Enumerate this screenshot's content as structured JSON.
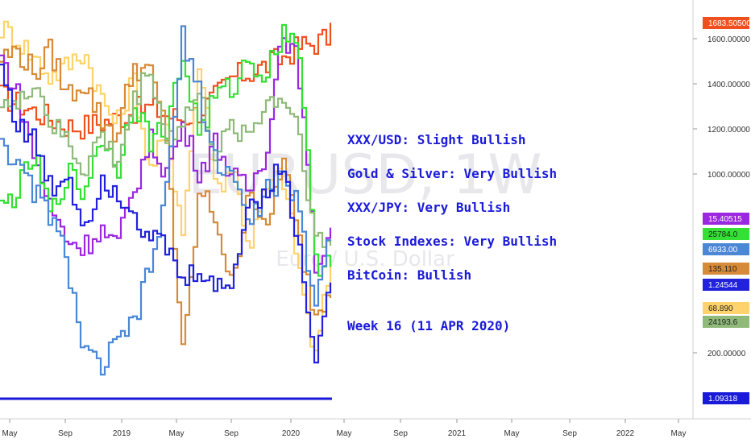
{
  "watermark": {
    "symbol": "EURUSD, 1W",
    "description": "Euro / U.S. Dollar"
  },
  "annotations": [
    "XXX/USD: Slight Bullish",
    "Gold & Silver: Very Bullish",
    "XXX/JPY: Very Bullish",
    "Stock Indexes:  Very Bullish",
    "BitCoin: Bullish",
    "Week 16 (11 APR 2020)"
  ],
  "chart_data": {
    "type": "line",
    "style": "step",
    "x_tick_labels": [
      "May",
      "Sep",
      "2019",
      "May",
      "Sep",
      "2020",
      "May",
      "Sep",
      "2021",
      "May",
      "Sep",
      "2022",
      "May"
    ],
    "x_range": [
      "2018-04",
      "2022-06"
    ],
    "y_tick_labels": [
      "1600.00000",
      "1400.00000",
      "1200.00000",
      "1000.00000",
      "200.00000"
    ],
    "grid": false,
    "price_tags": [
      {
        "label": "1683.50500",
        "color": "#f0501e"
      },
      {
        "label": "15.40515",
        "color": "#9c27e0"
      },
      {
        "label": "25784.0",
        "color": "#33e033"
      },
      {
        "label": "6933.00",
        "color": "#4a87d6"
      },
      {
        "label": "135.110",
        "color": "#d78a37"
      },
      {
        "label": "1.24544",
        "color": "#2222dd"
      },
      {
        "label": "68.890",
        "color": "#ffd36b"
      },
      {
        "label": "24193.6",
        "color": "#8fba7a"
      },
      {
        "label": "1.09318",
        "color": "#1a1ad9"
      }
    ],
    "series": [
      {
        "color": "#f0501e",
        "values": [
          0.8,
          0.78,
          0.76,
          0.74,
          0.72,
          0.72,
          0.73,
          0.74,
          0.76,
          0.77,
          0.75,
          0.74,
          0.76,
          0.8,
          0.85,
          0.86,
          0.88,
          0.9,
          0.93,
          0.94,
          0.96
        ]
      },
      {
        "color": "#ffd36b",
        "values": [
          0.98,
          0.95,
          0.9,
          0.85,
          0.88,
          0.92,
          0.8,
          0.72,
          0.85,
          0.6,
          0.7,
          0.45,
          0.9,
          0.55,
          0.62,
          0.4,
          0.55,
          0.6,
          0.35,
          0.1,
          0.38
        ]
      },
      {
        "color": "#d78a37",
        "values": [
          0.9,
          0.92,
          0.86,
          0.92,
          0.8,
          0.84,
          0.74,
          0.7,
          0.88,
          0.86,
          0.7,
          0.1,
          0.55,
          0.48,
          0.28,
          0.58,
          0.42,
          0.64,
          0.42,
          0.22,
          0.3
        ]
      },
      {
        "color": "#9c27e0",
        "values": [
          0.9,
          0.8,
          0.64,
          0.5,
          0.42,
          0.4,
          0.45,
          0.4,
          0.55,
          0.68,
          0.6,
          0.72,
          0.6,
          0.68,
          0.58,
          0.55,
          0.65,
          0.98,
          0.88,
          0.35,
          0.45
        ]
      },
      {
        "color": "#33e033",
        "values": [
          0.5,
          0.55,
          0.64,
          0.48,
          0.6,
          0.54,
          0.7,
          0.6,
          0.8,
          0.68,
          0.72,
          0.9,
          0.7,
          0.8,
          0.82,
          0.9,
          0.85,
          0.97,
          0.95,
          0.35,
          0.38
        ]
      },
      {
        "color": "#8fba7a",
        "values": [
          0.8,
          0.76,
          0.85,
          0.72,
          0.68,
          0.6,
          0.7,
          0.62,
          0.78,
          0.88,
          0.68,
          0.74,
          0.8,
          0.64,
          0.72,
          0.7,
          0.78,
          0.8,
          0.72,
          0.42,
          0.4
        ]
      },
      {
        "color": "#4a87d6",
        "values": [
          0.7,
          0.6,
          0.55,
          0.48,
          0.36,
          0.12,
          0.08,
          0.14,
          0.2,
          0.34,
          0.55,
          0.96,
          0.8,
          0.62,
          0.6,
          0.45,
          0.55,
          0.58,
          0.5,
          0.25,
          0.45
        ]
      },
      {
        "color": "#2222dd",
        "values": [
          0.88,
          0.72,
          0.68,
          0.55,
          0.6,
          0.45,
          0.58,
          0.55,
          0.5,
          0.42,
          0.4,
          0.3,
          0.35,
          0.28,
          0.32,
          0.52,
          0.55,
          0.62,
          0.4,
          0.12,
          0.3
        ]
      }
    ],
    "baseline": {
      "color": "#1a1ad9",
      "value": 0.0
    }
  }
}
